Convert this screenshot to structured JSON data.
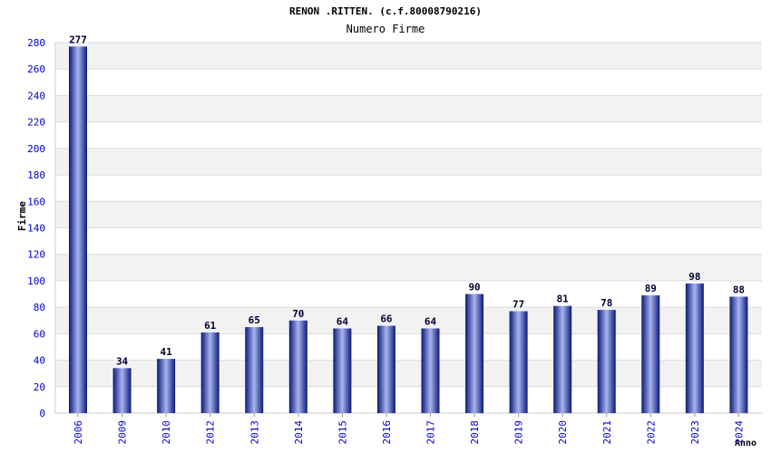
{
  "chart_data": {
    "type": "bar",
    "title": "RENON .RITTEN. (c.f.80008790216)",
    "subtitle": "Numero Firme",
    "xlabel": "Anno",
    "ylabel": "Firme",
    "categories": [
      "2006",
      "2009",
      "2010",
      "2012",
      "2013",
      "2014",
      "2015",
      "2016",
      "2017",
      "2018",
      "2019",
      "2020",
      "2021",
      "2022",
      "2023",
      "2024"
    ],
    "values": [
      277,
      34,
      41,
      61,
      65,
      70,
      64,
      66,
      64,
      90,
      77,
      81,
      78,
      89,
      98,
      88
    ],
    "ylim": [
      0,
      280
    ],
    "yticks": [
      0,
      20,
      40,
      60,
      80,
      100,
      120,
      140,
      160,
      180,
      200,
      220,
      240,
      260,
      280
    ],
    "grid": true,
    "colors": {
      "bar_dark": "#0a1a7a",
      "bar_light": "#aab4f0",
      "band": "#f2f2f2",
      "axis_text": "#0000cc",
      "label_text": "#000033"
    }
  }
}
